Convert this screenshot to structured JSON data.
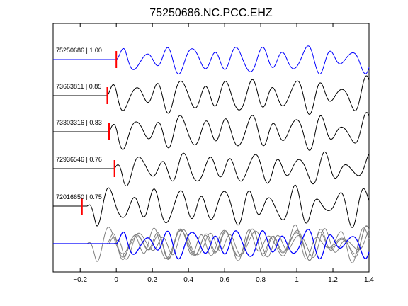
{
  "chart_data": {
    "type": "line",
    "title": "75250686.NC.PCC.EHZ",
    "xlabel": "",
    "ylabel": "",
    "xlim": [
      -0.35,
      1.4
    ],
    "xticks": [
      -0.2,
      0,
      0.2,
      0.4,
      0.6,
      0.8,
      1,
      1.2,
      1.4
    ],
    "xtick_labels": [
      "−0.2",
      "0",
      "0.2",
      "0.4",
      "0.6",
      "0.8",
      "1",
      "1.2",
      "1.4"
    ],
    "grid": false,
    "colors": {
      "main": "#0000ff",
      "other": "#000000",
      "pick": "#ff0000",
      "overlay_other": "#808080"
    },
    "traces": [
      {
        "label": "75250686 | 1.00",
        "id": "75250686",
        "cc": 1.0,
        "pick_time": 0.0,
        "onset": 0.0,
        "color": "#0000ff"
      },
      {
        "label": "73663811 | 0.85",
        "id": "73663811",
        "cc": 0.85,
        "pick_time": -0.05,
        "onset": -0.05,
        "color": "#000000"
      },
      {
        "label": "73303316 | 0.83",
        "id": "73303316",
        "cc": 0.83,
        "pick_time": -0.04,
        "onset": -0.04,
        "color": "#000000"
      },
      {
        "label": "72936546 | 0.76",
        "id": "72936546",
        "cc": 0.76,
        "pick_time": -0.01,
        "onset": -0.01,
        "color": "#000000"
      },
      {
        "label": "72016650 | 0.75",
        "id": "72016650",
        "cc": 0.75,
        "pick_time": -0.19,
        "onset": -0.16,
        "color": "#000000"
      }
    ],
    "stacked_overlay": true
  }
}
